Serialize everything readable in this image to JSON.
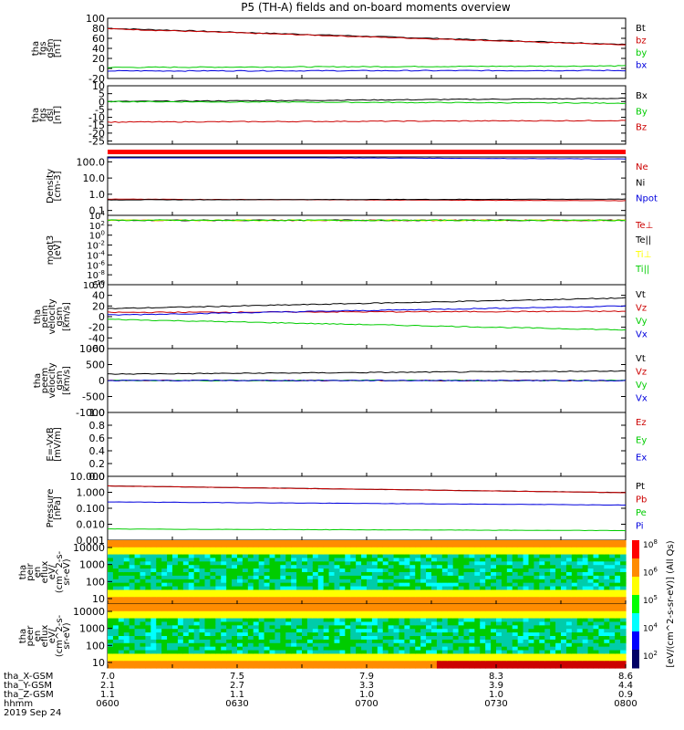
{
  "title": "P5 (TH-A) fields and on-board moments overview",
  "colors": {
    "black": "#000000",
    "red": "#cc0000",
    "green": "#00cc00",
    "blue": "#0000dd",
    "yellow": "#ffff00",
    "orange": "#ff8c00",
    "teal": "#00ccaa",
    "cyan": "#00ffff"
  },
  "chart_data": {
    "type": "line",
    "x_range": [
      "06:00",
      "08:00"
    ],
    "panels": [
      {
        "id": "fgs_gsm",
        "ylabel": [
          "tha",
          "fgs",
          "gsm",
          "[nT]"
        ],
        "ylim": [
          -20,
          100
        ],
        "yticks": [
          100,
          80,
          60,
          40,
          20,
          0,
          -20
        ],
        "series": [
          {
            "name": "Bt",
            "color": "black",
            "start": 80,
            "end": 48
          },
          {
            "name": "bz",
            "color": "red",
            "start": 79,
            "end": 47
          },
          {
            "name": "by",
            "color": "green",
            "start": 2,
            "end": 5
          },
          {
            "name": "bx",
            "color": "blue",
            "start": -5,
            "end": -4
          }
        ]
      },
      {
        "id": "fgs_dsl",
        "ylabel": [
          "tha",
          "fgs",
          "dsl",
          "[nT]"
        ],
        "ylim": [
          -27,
          10
        ],
        "yticks": [
          10,
          5,
          0,
          -5,
          -10,
          -15,
          -20,
          -25
        ],
        "series": [
          {
            "name": "Bx",
            "color": "black",
            "start": 0,
            "end": 2
          },
          {
            "name": "By",
            "color": "green",
            "start": 0,
            "end": -1
          },
          {
            "name": "Bz",
            "color": "red",
            "start": -13,
            "end": -12
          }
        ]
      },
      {
        "id": "moms_density",
        "ylabel": [
          "Density",
          "[cm-3]"
        ],
        "scale": "log",
        "ylim": [
          0.05,
          200
        ],
        "yticks": [
          "100.0",
          "10.0",
          "1.0",
          "0.1"
        ],
        "series": [
          {
            "name": "Ne",
            "color": "red",
            "start": 0.5,
            "end": 0.4
          },
          {
            "name": "Ni",
            "color": "black",
            "start": 0.45,
            "end": 0.5
          },
          {
            "name": "Npot",
            "color": "blue",
            "start": 200,
            "end": 150
          }
        ]
      },
      {
        "id": "moms_temp",
        "ylabel": [
          "moqt3",
          "[eV]"
        ],
        "ylim": [
          -10,
          4
        ],
        "ytick_exponents": [
          4,
          2,
          0,
          -2,
          -4,
          -6,
          -8,
          -10
        ],
        "series": [
          {
            "name": "Te⊥",
            "color": "red",
            "start": 3,
            "end": 3
          },
          {
            "name": "Te||",
            "color": "black",
            "start": 3,
            "end": 3
          },
          {
            "name": "Ti⊥",
            "color": "yellow",
            "start": 3,
            "end": 3
          },
          {
            "name": "Ti||",
            "color": "green",
            "start": 3,
            "end": 3
          }
        ]
      },
      {
        "id": "peim_velocity",
        "ylabel": [
          "tha",
          "peim",
          "velocity",
          "gsm",
          "[km/s]"
        ],
        "ylim": [
          -60,
          60
        ],
        "yticks": [
          60,
          40,
          20,
          0,
          -20,
          -40,
          -60
        ],
        "series": [
          {
            "name": "Vt",
            "color": "black",
            "start": 15,
            "end": 35
          },
          {
            "name": "Vz",
            "color": "red",
            "start": 8,
            "end": 10
          },
          {
            "name": "Vy",
            "color": "green",
            "start": -5,
            "end": -25
          },
          {
            "name": "Vx",
            "color": "blue",
            "start": 3,
            "end": 20
          }
        ]
      },
      {
        "id": "peem_velocity",
        "ylabel": [
          "tha",
          "peem",
          "velocity",
          "gsm",
          "[km/s]"
        ],
        "ylim": [
          -1000,
          1000
        ],
        "yticks": [
          1000,
          500,
          0,
          -500,
          -1000
        ],
        "series": [
          {
            "name": "Vt",
            "color": "black",
            "start": 200,
            "end": 300
          },
          {
            "name": "Vz",
            "color": "red",
            "start": 0,
            "end": 0
          },
          {
            "name": "Vy",
            "color": "green",
            "start": 0,
            "end": 0
          },
          {
            "name": "Vx",
            "color": "blue",
            "start": 0,
            "end": 0
          }
        ]
      },
      {
        "id": "efield",
        "ylabel": [
          "E=-VxB",
          "[mV/m]"
        ],
        "ylim": [
          0,
          1
        ],
        "yticks": [
          "1.0",
          "0.8",
          "0.6",
          "0.4",
          "0.2",
          "0.0"
        ],
        "series": [
          {
            "name": "Ez",
            "color": "red"
          },
          {
            "name": "Ey",
            "color": "green"
          },
          {
            "name": "Ex",
            "color": "blue"
          }
        ]
      },
      {
        "id": "pressure",
        "ylabel": [
          "Pressure",
          "[nPa]"
        ],
        "scale": "log",
        "ylim": [
          0.001,
          10
        ],
        "yticks": [
          "10.000",
          "1.000",
          "0.100",
          "0.010",
          "0.001"
        ],
        "series": [
          {
            "name": "Pt",
            "color": "black",
            "start": 2.5,
            "end": 0.95
          },
          {
            "name": "Pb",
            "color": "red",
            "start": 2.5,
            "end": 0.95
          },
          {
            "name": "Pe",
            "color": "green",
            "start": 0.005,
            "end": 0.004
          },
          {
            "name": "Pi",
            "color": "blue",
            "start": 0.25,
            "end": 0.16
          }
        ]
      },
      {
        "id": "peir_eflux",
        "type": "heatmap",
        "ylabel": [
          "tha",
          "peir",
          "en",
          "eflux",
          "eV/",
          "(cm^2-s-",
          "sr-eV)"
        ],
        "yticks": [
          "10000",
          "1000",
          "100",
          "10"
        ]
      },
      {
        "id": "peer_eflux",
        "type": "heatmap",
        "ylabel": [
          "tha",
          "peer",
          "en",
          "eflux",
          "eV/",
          "(cm^2-s-",
          "sr-eV)"
        ],
        "yticks": [
          "10000",
          "1000",
          "100",
          "10"
        ]
      }
    ],
    "colorbar": {
      "label": "[eV/(cm^2-s-sr-eV)] (All Qs)",
      "tick_exponents": [
        8,
        6,
        5,
        4,
        2
      ]
    },
    "x_axis": {
      "row_labels": [
        "tha_X-GSM",
        "tha_Y-GSM",
        "tha_Z-GSM",
        "hhmm",
        "2019 Sep 24"
      ],
      "ticks": [
        {
          "x": "7.0",
          "y": "2.1",
          "z": "1.1",
          "t": "0600"
        },
        {
          "x": "7.5",
          "y": "2.7",
          "z": "1.1",
          "t": "0630"
        },
        {
          "x": "7.9",
          "y": "3.3",
          "z": "1.0",
          "t": "0700"
        },
        {
          "x": "8.3",
          "y": "3.9",
          "z": "1.0",
          "t": "0730"
        },
        {
          "x": "8.6",
          "y": "4.4",
          "z": "0.9",
          "t": "0800"
        }
      ]
    }
  }
}
